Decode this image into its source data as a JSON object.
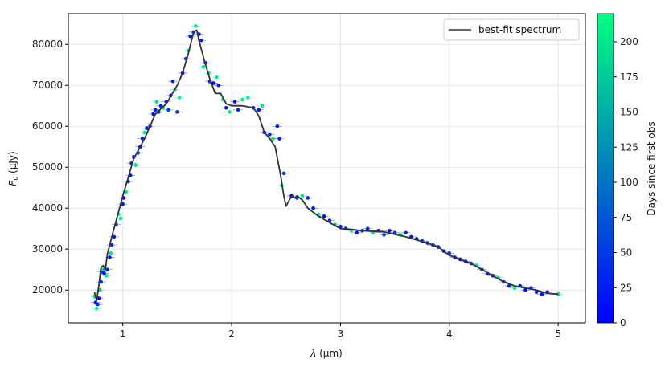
{
  "chart_data": {
    "type": "scatter",
    "xlabel_symbol": "λ",
    "xlabel_unit": "(μm)",
    "ylabel_symbol": "F",
    "ylabel_sub": "ν",
    "ylabel_unit": "(μJy)",
    "colorbar_label": "Days since first obs",
    "xlim": [
      0.5,
      5.25
    ],
    "ylim": [
      12000,
      87500
    ],
    "xticks": [
      1,
      2,
      3,
      4,
      5
    ],
    "yticks": [
      20000,
      30000,
      40000,
      50000,
      60000,
      70000,
      80000
    ],
    "colorbar_ticks": [
      0,
      25,
      50,
      75,
      100,
      125,
      150,
      175,
      200
    ],
    "colorbar_range": [
      0,
      220
    ],
    "colormap": [
      "#0000ff",
      "#00ff80"
    ],
    "grid": true,
    "legend_position": "top-right",
    "legend": [
      {
        "name": "best-fit spectrum",
        "color": "#333333"
      }
    ],
    "best_fit": {
      "name": "best-fit spectrum",
      "color": "#333333",
      "x": [
        0.74,
        0.76,
        0.78,
        0.8,
        0.82,
        0.84,
        0.86,
        0.88,
        0.9,
        0.95,
        1.0,
        1.05,
        1.1,
        1.2,
        1.3,
        1.4,
        1.5,
        1.55,
        1.6,
        1.65,
        1.68,
        1.7,
        1.75,
        1.8,
        1.85,
        1.9,
        1.95,
        2.0,
        2.1,
        2.2,
        2.25,
        2.3,
        2.35,
        2.4,
        2.45,
        2.48,
        2.5,
        2.55,
        2.58,
        2.6,
        2.65,
        2.7,
        2.8,
        2.9,
        3.0,
        3.1,
        3.2,
        3.4,
        3.6,
        3.8,
        3.9,
        4.0,
        4.1,
        4.2,
        4.3,
        4.4,
        4.5,
        4.6,
        4.7,
        4.8,
        4.9,
        5.0
      ],
      "y": [
        19500,
        17500,
        21000,
        25500,
        26000,
        25000,
        29000,
        31000,
        33000,
        38000,
        43000,
        47500,
        52000,
        57000,
        63000,
        65500,
        70000,
        73000,
        77500,
        83000,
        83500,
        81000,
        76000,
        71500,
        68000,
        68000,
        65500,
        65000,
        65000,
        64500,
        62500,
        58500,
        57000,
        55000,
        48000,
        43000,
        40500,
        43000,
        42500,
        43000,
        42000,
        40000,
        38000,
        36500,
        35000,
        34800,
        34500,
        34200,
        33000,
        31500,
        30500,
        28500,
        27500,
        26500,
        25000,
        23500,
        22000,
        21000,
        20500,
        20000,
        19200,
        19000
      ]
    },
    "observations": [
      {
        "x": 0.74,
        "y": 18500,
        "day": 200
      },
      {
        "x": 0.75,
        "y": 17000,
        "day": 30
      },
      {
        "x": 0.76,
        "y": 15500,
        "day": 210
      },
      {
        "x": 0.77,
        "y": 16500,
        "day": 40
      },
      {
        "x": 0.78,
        "y": 18000,
        "day": 10
      },
      {
        "x": 0.79,
        "y": 20000,
        "day": 180
      },
      {
        "x": 0.8,
        "y": 22000,
        "day": 20
      },
      {
        "x": 0.81,
        "y": 24500,
        "day": 50
      },
      {
        "x": 0.82,
        "y": 25000,
        "day": 190
      },
      {
        "x": 0.83,
        "y": 24000,
        "day": 15
      },
      {
        "x": 0.85,
        "y": 23500,
        "day": 200
      },
      {
        "x": 0.86,
        "y": 25000,
        "day": 30
      },
      {
        "x": 0.88,
        "y": 28000,
        "day": 10
      },
      {
        "x": 0.89,
        "y": 29000,
        "day": 200
      },
      {
        "x": 0.9,
        "y": 31000,
        "day": 40
      },
      {
        "x": 0.92,
        "y": 33000,
        "day": 20
      },
      {
        "x": 0.94,
        "y": 36000,
        "day": 60
      },
      {
        "x": 0.96,
        "y": 38500,
        "day": 210
      },
      {
        "x": 0.98,
        "y": 37500,
        "day": 190
      },
      {
        "x": 1.0,
        "y": 41000,
        "day": 30
      },
      {
        "x": 1.01,
        "y": 42500,
        "day": 10
      },
      {
        "x": 1.03,
        "y": 44000,
        "day": 200
      },
      {
        "x": 1.05,
        "y": 46500,
        "day": 40
      },
      {
        "x": 1.07,
        "y": 48000,
        "day": 20
      },
      {
        "x": 1.08,
        "y": 51000,
        "day": 50
      },
      {
        "x": 1.1,
        "y": 52500,
        "day": 15
      },
      {
        "x": 1.12,
        "y": 50500,
        "day": 200
      },
      {
        "x": 1.14,
        "y": 53500,
        "day": 30
      },
      {
        "x": 1.16,
        "y": 55000,
        "day": 10
      },
      {
        "x": 1.18,
        "y": 57000,
        "day": 40
      },
      {
        "x": 1.2,
        "y": 58500,
        "day": 210
      },
      {
        "x": 1.22,
        "y": 59500,
        "day": 20
      },
      {
        "x": 1.25,
        "y": 60000,
        "day": 50
      },
      {
        "x": 1.28,
        "y": 63000,
        "day": 10
      },
      {
        "x": 1.3,
        "y": 64000,
        "day": 30
      },
      {
        "x": 1.31,
        "y": 66000,
        "day": 200
      },
      {
        "x": 1.33,
        "y": 63500,
        "day": 40
      },
      {
        "x": 1.35,
        "y": 65000,
        "day": 20
      },
      {
        "x": 1.37,
        "y": 64500,
        "day": 190
      },
      {
        "x": 1.4,
        "y": 66000,
        "day": 10
      },
      {
        "x": 1.42,
        "y": 64000,
        "day": 50
      },
      {
        "x": 1.44,
        "y": 67500,
        "day": 30
      },
      {
        "x": 1.46,
        "y": 71000,
        "day": 20
      },
      {
        "x": 1.48,
        "y": 69000,
        "day": 200
      },
      {
        "x": 1.5,
        "y": 63500,
        "day": 40
      },
      {
        "x": 1.52,
        "y": 67000,
        "day": 210
      },
      {
        "x": 1.55,
        "y": 73000,
        "day": 10
      },
      {
        "x": 1.58,
        "y": 76500,
        "day": 30
      },
      {
        "x": 1.6,
        "y": 78500,
        "day": 200
      },
      {
        "x": 1.62,
        "y": 82000,
        "day": 20
      },
      {
        "x": 1.65,
        "y": 83000,
        "day": 40
      },
      {
        "x": 1.67,
        "y": 84500,
        "day": 200
      },
      {
        "x": 1.7,
        "y": 82500,
        "day": 10
      },
      {
        "x": 1.72,
        "y": 81000,
        "day": 30
      },
      {
        "x": 1.74,
        "y": 74500,
        "day": 190
      },
      {
        "x": 1.76,
        "y": 75500,
        "day": 20
      },
      {
        "x": 1.79,
        "y": 73000,
        "day": 210
      },
      {
        "x": 1.8,
        "y": 71000,
        "day": 40
      },
      {
        "x": 1.83,
        "y": 70500,
        "day": 10
      },
      {
        "x": 1.86,
        "y": 72000,
        "day": 200
      },
      {
        "x": 1.88,
        "y": 70000,
        "day": 30
      },
      {
        "x": 1.92,
        "y": 66500,
        "day": 190
      },
      {
        "x": 1.95,
        "y": 64500,
        "day": 20
      },
      {
        "x": 1.98,
        "y": 63500,
        "day": 200
      },
      {
        "x": 2.03,
        "y": 66000,
        "day": 10
      },
      {
        "x": 2.06,
        "y": 64000,
        "day": 40
      },
      {
        "x": 2.1,
        "y": 66500,
        "day": 200
      },
      {
        "x": 2.15,
        "y": 67000,
        "day": 210
      },
      {
        "x": 2.2,
        "y": 64500,
        "day": 30
      },
      {
        "x": 2.25,
        "y": 64000,
        "day": 20
      },
      {
        "x": 2.28,
        "y": 65000,
        "day": 200
      },
      {
        "x": 2.3,
        "y": 58500,
        "day": 10
      },
      {
        "x": 2.35,
        "y": 58000,
        "day": 40
      },
      {
        "x": 2.38,
        "y": 57000,
        "day": 190
      },
      {
        "x": 2.42,
        "y": 60000,
        "day": 30
      },
      {
        "x": 2.44,
        "y": 57000,
        "day": 20
      },
      {
        "x": 2.46,
        "y": 45500,
        "day": 210
      },
      {
        "x": 2.48,
        "y": 48500,
        "day": 50
      },
      {
        "x": 2.55,
        "y": 43000,
        "day": 10
      },
      {
        "x": 2.6,
        "y": 42500,
        "day": 40
      },
      {
        "x": 2.65,
        "y": 43000,
        "day": 200
      },
      {
        "x": 2.7,
        "y": 42500,
        "day": 30
      },
      {
        "x": 2.75,
        "y": 40000,
        "day": 20
      },
      {
        "x": 2.8,
        "y": 38500,
        "day": 200
      },
      {
        "x": 2.85,
        "y": 38000,
        "day": 10
      },
      {
        "x": 2.9,
        "y": 37000,
        "day": 40
      },
      {
        "x": 2.95,
        "y": 36000,
        "day": 190
      },
      {
        "x": 3.0,
        "y": 35500,
        "day": 30
      },
      {
        "x": 3.05,
        "y": 35000,
        "day": 20
      },
      {
        "x": 3.1,
        "y": 34500,
        "day": 200
      },
      {
        "x": 3.15,
        "y": 34000,
        "day": 10
      },
      {
        "x": 3.2,
        "y": 34500,
        "day": 40
      },
      {
        "x": 3.25,
        "y": 35000,
        "day": 30
      },
      {
        "x": 3.3,
        "y": 34000,
        "day": 200
      },
      {
        "x": 3.35,
        "y": 34500,
        "day": 20
      },
      {
        "x": 3.4,
        "y": 33500,
        "day": 50
      },
      {
        "x": 3.45,
        "y": 34500,
        "day": 10
      },
      {
        "x": 3.5,
        "y": 34000,
        "day": 40
      },
      {
        "x": 3.55,
        "y": 33500,
        "day": 200
      },
      {
        "x": 3.6,
        "y": 34000,
        "day": 30
      },
      {
        "x": 3.65,
        "y": 33000,
        "day": 20
      },
      {
        "x": 3.7,
        "y": 32500,
        "day": 10
      },
      {
        "x": 3.75,
        "y": 32000,
        "day": 50
      },
      {
        "x": 3.8,
        "y": 31500,
        "day": 40
      },
      {
        "x": 3.85,
        "y": 31000,
        "day": 30
      },
      {
        "x": 3.9,
        "y": 30500,
        "day": 20
      },
      {
        "x": 3.95,
        "y": 29500,
        "day": 10
      },
      {
        "x": 4.0,
        "y": 29000,
        "day": 40
      },
      {
        "x": 4.05,
        "y": 28000,
        "day": 30
      },
      {
        "x": 4.1,
        "y": 27500,
        "day": 20
      },
      {
        "x": 4.15,
        "y": 27000,
        "day": 10
      },
      {
        "x": 4.2,
        "y": 26500,
        "day": 40
      },
      {
        "x": 4.25,
        "y": 26000,
        "day": 200
      },
      {
        "x": 4.3,
        "y": 25000,
        "day": 30
      },
      {
        "x": 4.35,
        "y": 24000,
        "day": 20
      },
      {
        "x": 4.4,
        "y": 23500,
        "day": 10
      },
      {
        "x": 4.45,
        "y": 23000,
        "day": 200
      },
      {
        "x": 4.5,
        "y": 22000,
        "day": 40
      },
      {
        "x": 4.55,
        "y": 21000,
        "day": 30
      },
      {
        "x": 4.6,
        "y": 20500,
        "day": 200
      },
      {
        "x": 4.65,
        "y": 21000,
        "day": 20
      },
      {
        "x": 4.7,
        "y": 20000,
        "day": 10
      },
      {
        "x": 4.75,
        "y": 20500,
        "day": 40
      },
      {
        "x": 4.8,
        "y": 19500,
        "day": 30
      },
      {
        "x": 4.85,
        "y": 19000,
        "day": 20
      },
      {
        "x": 4.9,
        "y": 19500,
        "day": 10
      },
      {
        "x": 5.0,
        "y": 19000,
        "day": 200
      }
    ]
  }
}
